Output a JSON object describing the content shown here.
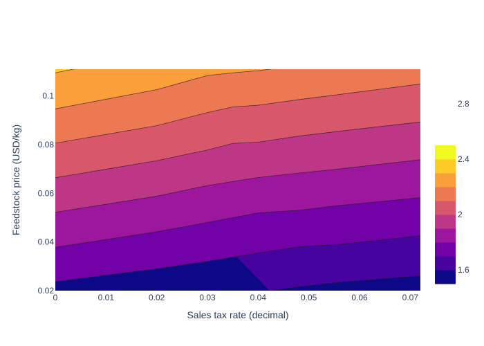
{
  "chart_data": {
    "type": "contour",
    "title": "",
    "xlabel": "Sales tax rate (decimal)",
    "ylabel": "Feedstock price (USD/kg)",
    "xlim": [
      0,
      0.072
    ],
    "ylim": [
      0.02,
      0.111
    ],
    "x_ticks": [
      "0",
      "0.01",
      "0.02",
      "0.03",
      "0.04",
      "0.05",
      "0.06",
      "0.07"
    ],
    "x_tick_values": [
      0,
      0.01,
      0.02,
      0.03,
      0.04,
      0.05,
      0.06,
      0.07
    ],
    "y_ticks": [
      "0.02",
      "0.04",
      "0.06",
      "0.08",
      "0.1"
    ],
    "y_tick_values": [
      0.02,
      0.04,
      0.06,
      0.08,
      0.1
    ],
    "levels": [
      1.5,
      1.6,
      1.7,
      1.8,
      1.9,
      2.0,
      2.1,
      2.2,
      2.3,
      2.4,
      2.5,
      2.6,
      2.7,
      2.8,
      2.9,
      3.0
    ],
    "band_colors": [
      "#0d0887",
      "#46039f",
      "#7201a8",
      "#9c179e",
      "#bd3786",
      "#d8576b",
      "#ed7953",
      "#fb9f3a",
      "#fdca26",
      "#f0f921"
    ],
    "colorbar": {
      "range": [
        1.5,
        3.0
      ],
      "ticks": [
        "1.6",
        "2",
        "2.4",
        "2.8"
      ],
      "tick_values": [
        1.6,
        2.0,
        2.4,
        2.8
      ]
    },
    "contour_lines": [
      {
        "x": [
          0.0425,
          0.048,
          0.056,
          0.072
        ],
        "y": [
          0.02,
          0.0216,
          0.0234,
          0.0261
        ]
      },
      {
        "x": [
          0,
          0.02,
          0.03,
          0.04,
          0.048,
          0.056,
          0.072
        ],
        "y": [
          0.0237,
          0.029,
          0.032,
          0.0355,
          0.038,
          0.039,
          0.0426
        ]
      },
      {
        "x": [
          0,
          0.02,
          0.03,
          0.04,
          0.048,
          0.056,
          0.072
        ],
        "y": [
          0.0378,
          0.0442,
          0.048,
          0.052,
          0.053,
          0.055,
          0.0582
        ]
      },
      {
        "x": [
          0,
          0.02,
          0.03,
          0.04,
          0.048,
          0.056,
          0.072
        ],
        "y": [
          0.0522,
          0.0588,
          0.0632,
          0.0665,
          0.0683,
          0.07,
          0.0738
        ]
      },
      {
        "x": [
          0,
          0.02,
          0.03,
          0.035,
          0.04,
          0.048,
          0.056,
          0.072
        ],
        "y": [
          0.0664,
          0.0734,
          0.0778,
          0.0805,
          0.081,
          0.0835,
          0.0855,
          0.0893
        ]
      },
      {
        "x": [
          0,
          0.02,
          0.03,
          0.035,
          0.04,
          0.048,
          0.056,
          0.072
        ],
        "y": [
          0.0806,
          0.0878,
          0.0932,
          0.0955,
          0.0962,
          0.0985,
          0.1006,
          0.1049
        ]
      },
      {
        "x": [
          0,
          0.02,
          0.03,
          0.035,
          0.04,
          0.048,
          0.056,
          0.072
        ],
        "y": [
          0.0947,
          0.1026,
          0.1084,
          0.1095,
          0.1104,
          0.1126,
          0.1146,
          0.119
        ]
      },
      {
        "x": [
          0,
          0.004
        ],
        "y": [
          0.1095,
          0.1112
        ]
      }
    ]
  }
}
